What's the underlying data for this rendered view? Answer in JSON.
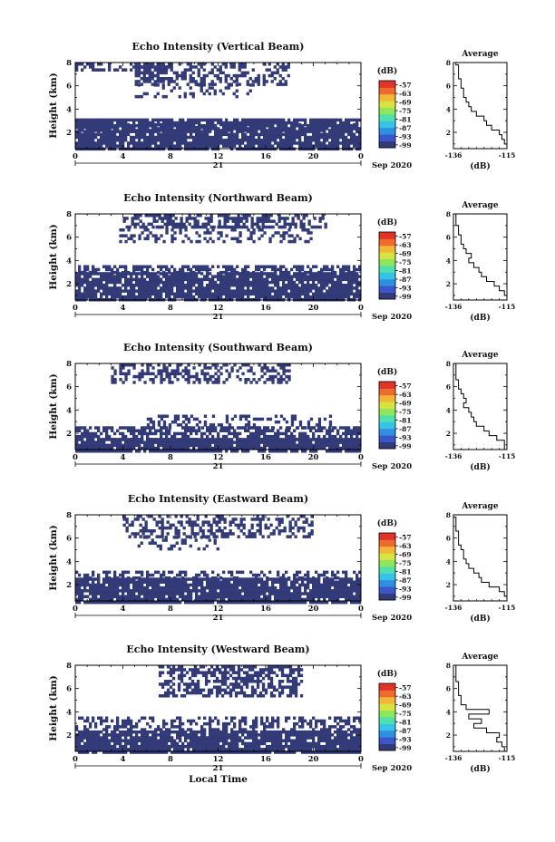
{
  "chart_data": [
    {
      "type": "heatmap",
      "title": "Echo Intensity (Vertical Beam)",
      "xlabel": "",
      "ylabel": "Height (km)",
      "x_ticks": [
        "0",
        "4",
        "8",
        "12",
        "16",
        "20",
        "0"
      ],
      "xlim": [
        0,
        24
      ],
      "y_ticks": [
        "2",
        "4",
        "6",
        "8"
      ],
      "ylim": [
        0.6,
        8
      ],
      "day_label": "21",
      "date_label": "Sep 2020",
      "colorbar": {
        "unit": "(dB)",
        "ticks": [
          "-57",
          "-63",
          "-69",
          "-75",
          "-81",
          "-87",
          "-93",
          "-99"
        ],
        "range": [
          -101,
          -54
        ]
      },
      "layers": [
        {
          "x0": 0,
          "x1": 24,
          "h0": 0.6,
          "h1": 3.2,
          "value": -99,
          "density": 0.88
        },
        {
          "x0": 0,
          "x1": 24,
          "h0": 2.2,
          "h1": 2.8,
          "value": -99,
          "density": 0.55
        },
        {
          "x0": 5,
          "x1": 18,
          "h0": 6.2,
          "h1": 8.0,
          "value": -99,
          "density": 0.45
        },
        {
          "x0": 0,
          "x1": 8,
          "h0": 7.5,
          "h1": 8.0,
          "value": -99,
          "density": 0.5
        },
        {
          "x0": 5,
          "x1": 15,
          "h0": 5.0,
          "h1": 6.2,
          "value": -99,
          "density": 0.22
        }
      ],
      "profile": {
        "xlim": [
          -136,
          -115
        ],
        "x_ticks": [
          "-136",
          "-115"
        ],
        "y_ticks": [
          "2",
          "4",
          "6",
          "8"
        ],
        "ylim": [
          0.6,
          8
        ],
        "xlabel": "(dB)",
        "title": "Average",
        "h": [
          0.6,
          1.0,
          1.4,
          1.8,
          2.2,
          2.6,
          3.0,
          3.4,
          3.8,
          4.2,
          4.6,
          5.0,
          5.4,
          5.8,
          6.2,
          6.6,
          7.0,
          7.4,
          7.8,
          8.0
        ],
        "v": [
          -115,
          -116,
          -117,
          -118,
          -121,
          -123,
          -124,
          -127,
          -129,
          -130,
          -131,
          -132,
          -132,
          -133,
          -133,
          -134,
          -134,
          -134,
          -135,
          -135
        ]
      }
    },
    {
      "type": "heatmap",
      "title": "Echo Intensity (Northward Beam)",
      "xlabel": "",
      "ylabel": "Height (km)",
      "x_ticks": [
        "0",
        "4",
        "8",
        "12",
        "16",
        "20",
        "0"
      ],
      "xlim": [
        0,
        24
      ],
      "y_ticks": [
        "2",
        "4",
        "6",
        "8"
      ],
      "ylim": [
        0.6,
        8
      ],
      "day_label": "21",
      "date_label": "Sep 2020",
      "colorbar": {
        "unit": "(dB)",
        "ticks": [
          "-57",
          "-63",
          "-69",
          "-75",
          "-81",
          "-87",
          "-93",
          "-99"
        ],
        "range": [
          -101,
          -54
        ]
      },
      "layers": [
        {
          "x0": 0,
          "x1": 24,
          "h0": 0.6,
          "h1": 3.0,
          "value": -99,
          "density": 0.9
        },
        {
          "x0": 0,
          "x1": 24,
          "h0": 3.0,
          "h1": 3.6,
          "value": -99,
          "density": 0.6
        },
        {
          "x0": 4,
          "x1": 21,
          "h0": 7.0,
          "h1": 8.0,
          "value": -99,
          "density": 0.55
        },
        {
          "x0": 3,
          "x1": 20,
          "h0": 5.6,
          "h1": 7.0,
          "value": -99,
          "density": 0.25
        }
      ],
      "profile": {
        "xlim": [
          -136,
          -115
        ],
        "x_ticks": [
          "-136",
          "-115"
        ],
        "y_ticks": [
          "2",
          "4",
          "6",
          "8"
        ],
        "ylim": [
          0.6,
          8
        ],
        "xlabel": "(dB)",
        "title": "Average",
        "h": [
          0.6,
          1.0,
          1.4,
          1.8,
          2.2,
          2.6,
          3.0,
          3.4,
          3.8,
          4.2,
          4.6,
          5.0,
          5.4,
          5.8,
          6.2,
          6.6,
          7.0,
          7.4,
          7.8,
          8.0
        ],
        "v": [
          -115,
          -116,
          -118,
          -120,
          -123,
          -125,
          -126,
          -128,
          -130,
          -129,
          -131,
          -132,
          -133,
          -133,
          -134,
          -134,
          -135,
          -135,
          -135,
          -136
        ]
      }
    },
    {
      "type": "heatmap",
      "title": "Echo Intensity (Southward Beam)",
      "xlabel": "",
      "ylabel": "Height (km)",
      "x_ticks": [
        "0",
        "4",
        "8",
        "12",
        "16",
        "20",
        "0"
      ],
      "xlim": [
        0,
        24
      ],
      "y_ticks": [
        "2",
        "4",
        "6",
        "8"
      ],
      "ylim": [
        0.6,
        8
      ],
      "day_label": "21",
      "date_label": "Sep 2020",
      "colorbar": {
        "unit": "(dB)",
        "ticks": [
          "-57",
          "-63",
          "-69",
          "-75",
          "-81",
          "-87",
          "-93",
          "-99"
        ],
        "range": [
          -101,
          -54
        ]
      },
      "layers": [
        {
          "x0": 0,
          "x1": 24,
          "h0": 0.6,
          "h1": 1.6,
          "value": -99,
          "density": 0.92
        },
        {
          "x0": 0,
          "x1": 24,
          "h0": 1.6,
          "h1": 2.6,
          "value": -99,
          "density": 0.6
        },
        {
          "x0": 6,
          "x1": 22,
          "h0": 2.6,
          "h1": 3.6,
          "value": -99,
          "density": 0.35
        },
        {
          "x0": 3,
          "x1": 18,
          "h0": 6.4,
          "h1": 8.0,
          "value": -99,
          "density": 0.4
        }
      ],
      "profile": {
        "xlim": [
          -136,
          -115
        ],
        "x_ticks": [
          "-136",
          "-115"
        ],
        "y_ticks": [
          "2",
          "4",
          "6",
          "8"
        ],
        "ylim": [
          0.6,
          8
        ],
        "xlabel": "(dB)",
        "title": "Average",
        "h": [
          0.6,
          1.0,
          1.4,
          1.8,
          2.2,
          2.6,
          3.0,
          3.4,
          3.8,
          4.2,
          4.6,
          5.0,
          5.4,
          5.8,
          6.2,
          6.6,
          7.0,
          7.4,
          7.8,
          8.0
        ],
        "v": [
          -116,
          -116,
          -119,
          -122,
          -124,
          -127,
          -128,
          -129,
          -130,
          -132,
          -131,
          -132,
          -133,
          -134,
          -134,
          -135,
          -135,
          -135,
          -135,
          -136
        ]
      }
    },
    {
      "type": "heatmap",
      "title": "Echo Intensity (Eastward Beam)",
      "xlabel": "",
      "ylabel": "Height (km)",
      "x_ticks": [
        "0",
        "4",
        "8",
        "12",
        "16",
        "20",
        "0"
      ],
      "xlim": [
        0,
        24
      ],
      "y_ticks": [
        "2",
        "4",
        "6",
        "8"
      ],
      "ylim": [
        0.6,
        8
      ],
      "day_label": "21",
      "date_label": "Sep 2020",
      "colorbar": {
        "unit": "(dB)",
        "ticks": [
          "-57",
          "-63",
          "-69",
          "-75",
          "-81",
          "-87",
          "-93",
          "-99"
        ],
        "range": [
          -101,
          -54
        ]
      },
      "layers": [
        {
          "x0": 0,
          "x1": 24,
          "h0": 0.6,
          "h1": 2.6,
          "value": -99,
          "density": 0.88
        },
        {
          "x0": 0,
          "x1": 24,
          "h0": 2.6,
          "h1": 3.2,
          "value": -99,
          "density": 0.45
        },
        {
          "x0": 4,
          "x1": 20,
          "h0": 6.2,
          "h1": 8.0,
          "value": -99,
          "density": 0.45
        },
        {
          "x0": 5,
          "x1": 12,
          "h0": 5.0,
          "h1": 6.2,
          "value": -99,
          "density": 0.25
        }
      ],
      "profile": {
        "xlim": [
          -136,
          -115
        ],
        "x_ticks": [
          "-136",
          "-115"
        ],
        "y_ticks": [
          "2",
          "4",
          "6",
          "8"
        ],
        "ylim": [
          0.6,
          8
        ],
        "xlabel": "(dB)",
        "title": "Average",
        "h": [
          0.6,
          1.0,
          1.4,
          1.8,
          2.2,
          2.6,
          3.0,
          3.4,
          3.8,
          4.2,
          4.6,
          5.0,
          5.4,
          5.8,
          6.2,
          6.6,
          7.0,
          7.4,
          7.8,
          8.0
        ],
        "v": [
          -115,
          -116,
          -118,
          -122,
          -125,
          -126,
          -128,
          -130,
          -131,
          -132,
          -132,
          -133,
          -134,
          -134,
          -134,
          -135,
          -135,
          -135,
          -136,
          -136
        ]
      }
    },
    {
      "type": "heatmap",
      "title": "Echo Intensity (Westward Beam)",
      "xlabel": "Local Time",
      "ylabel": "Height (km)",
      "x_ticks": [
        "0",
        "4",
        "8",
        "12",
        "16",
        "20",
        "0"
      ],
      "xlim": [
        0,
        24
      ],
      "y_ticks": [
        "2",
        "4",
        "6",
        "8"
      ],
      "ylim": [
        0.6,
        8
      ],
      "day_label": "21",
      "date_label": "Sep 2020",
      "colorbar": {
        "unit": "(dB)",
        "ticks": [
          "-57",
          "-63",
          "-69",
          "-75",
          "-81",
          "-87",
          "-93",
          "-99"
        ],
        "range": [
          -101,
          -54
        ]
      },
      "layers": [
        {
          "x0": 0,
          "x1": 24,
          "h0": 0.6,
          "h1": 2.4,
          "value": -99,
          "density": 0.9
        },
        {
          "x0": 0,
          "x1": 24,
          "h0": 2.4,
          "h1": 3.6,
          "value": -99,
          "density": 0.45
        },
        {
          "x0": 7,
          "x1": 19,
          "h0": 5.4,
          "h1": 8.0,
          "value": -99,
          "density": 0.55
        }
      ],
      "profile": {
        "xlim": [
          -136,
          -115
        ],
        "x_ticks": [
          "-136",
          "-115"
        ],
        "y_ticks": [
          "2",
          "4",
          "6",
          "8"
        ],
        "ylim": [
          0.6,
          8
        ],
        "xlabel": "(dB)",
        "title": "Average",
        "h": [
          0.6,
          1.0,
          1.4,
          1.8,
          2.2,
          2.6,
          3.0,
          3.4,
          3.8,
          4.2,
          4.6,
          5.0,
          5.4,
          5.8,
          6.2,
          6.6,
          7.0,
          7.4,
          7.8,
          8.0
        ],
        "v": [
          -116,
          -117,
          -119,
          -118,
          -123,
          -128,
          -125,
          -130,
          -122,
          -131,
          -133,
          -133,
          -134,
          -134,
          -134,
          -135,
          -135,
          -135,
          -135,
          -135
        ]
      }
    }
  ],
  "colors": {
    "cell": "#323a77",
    "palette": [
      "#323a77",
      "#3a56c8",
      "#2f8fe0",
      "#35c3e8",
      "#4fe0b0",
      "#8ee65a",
      "#d6e340",
      "#f4b636",
      "#ee6b2e",
      "#e03428"
    ]
  }
}
